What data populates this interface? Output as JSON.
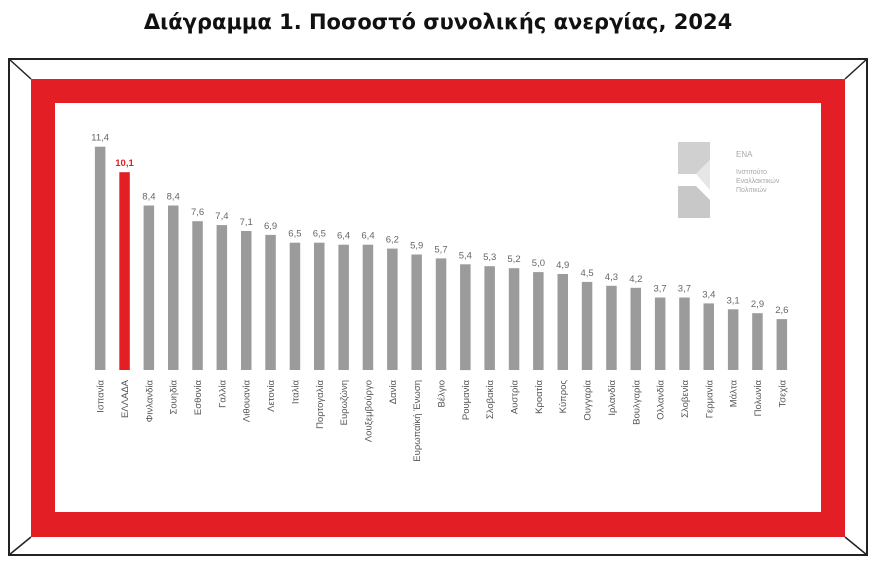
{
  "title": "Διάγραμμα 1. Ποσοστό συνολικής ανεργίας, 2024",
  "logo": {
    "name": "ΕΝΑ",
    "subtitle": "Ινστιτούτο Εναλλακτικών Πολιτικών"
  },
  "colors": {
    "frame_red": "#e31e25",
    "bar_gray": "#9b9b9b",
    "bar_highlight": "#e31e25",
    "label_gray": "#666666"
  },
  "chart_data": {
    "type": "bar",
    "title": "",
    "xlabel": "",
    "ylabel": "",
    "ylim": [
      0,
      12
    ],
    "grid": false,
    "legend": "none",
    "highlight_index": 1,
    "categories": [
      "Ισπανία",
      "ΕΛΛΑΔΑ",
      "Φινλανδία",
      "Σουηδία",
      "Εσθονία",
      "Γαλλία",
      "Λιθουανία",
      "Λετονία",
      "Ιταλία",
      "Πορτογαλία",
      "Ευρωζώνη",
      "Λουξεμβούργο",
      "Δανία",
      "Ευρωπαϊκή Ένωση",
      "Βέλγιο",
      "Ρουμανία",
      "Σλοβακία",
      "Αυστρία",
      "Κροατία",
      "Κύπρος",
      "Ουγγαρία",
      "Ιρλανδία",
      "Βουλγαρία",
      "Ολλανδία",
      "Σλοβενία",
      "Γερμανία",
      "Μάλτα",
      "Πολωνία",
      "Τσεχία"
    ],
    "values": [
      11.4,
      10.1,
      8.4,
      8.4,
      7.6,
      7.4,
      7.1,
      6.9,
      6.5,
      6.5,
      6.4,
      6.4,
      6.2,
      5.9,
      5.7,
      5.4,
      5.3,
      5.2,
      5.0,
      4.9,
      4.5,
      4.3,
      4.2,
      3.7,
      3.7,
      3.4,
      3.1,
      2.9,
      2.6
    ],
    "value_labels": [
      "11,4",
      "10,1",
      "8,4",
      "8,4",
      "7,6",
      "7,4",
      "7,1",
      "6,9",
      "6,5",
      "6,5",
      "6,4",
      "6,4",
      "6,2",
      "5,9",
      "5,7",
      "5,4",
      "5,3",
      "5,2",
      "5,0",
      "4,9",
      "4,5",
      "4,3",
      "4,2",
      "3,7",
      "3,7",
      "3,4",
      "3,1",
      "2,9",
      "2,6"
    ]
  }
}
